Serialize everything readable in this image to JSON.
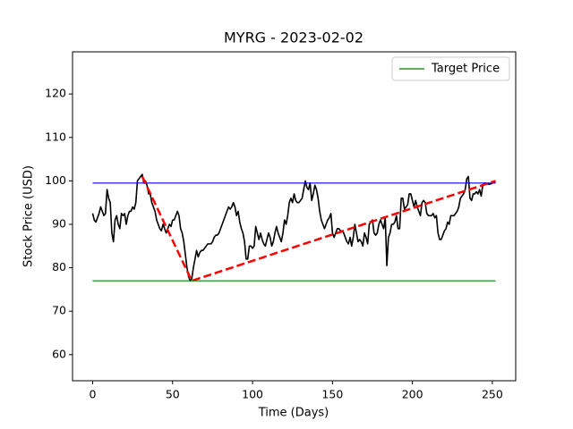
{
  "chart_data": {
    "type": "line",
    "title": "MYRG - 2023-02-02",
    "xlabel": "Time (Days)",
    "ylabel": "Stock Price (USD)",
    "xlim": [
      -12.6,
      264.6
    ],
    "ylim": [
      54,
      129.7
    ],
    "xticks": [
      0,
      50,
      100,
      150,
      200,
      250
    ],
    "yticks": [
      60,
      70,
      80,
      90,
      100,
      110,
      120
    ],
    "legend": "upper right",
    "series": [
      {
        "color": "black",
        "linestyle": "solid",
        "x": [
          0,
          1,
          2,
          3,
          4,
          5,
          6,
          7,
          8,
          9,
          10,
          11,
          12,
          13,
          14,
          15,
          16,
          17,
          18,
          19,
          20,
          21,
          22,
          23,
          24,
          25,
          26,
          27,
          28,
          29,
          30,
          31,
          32,
          33,
          34,
          35,
          36,
          37,
          38,
          39,
          40,
          41,
          42,
          43,
          44,
          45,
          46,
          47,
          48,
          49,
          50,
          51,
          52,
          53,
          54,
          55,
          56,
          57,
          58,
          59,
          60,
          61,
          62,
          63,
          64,
          65,
          66,
          67,
          68,
          69,
          70,
          71,
          72,
          73,
          74,
          75,
          76,
          77,
          78,
          79,
          80,
          81,
          82,
          83,
          84,
          85,
          86,
          87,
          88,
          89,
          90,
          91,
          92,
          93,
          94,
          95,
          96,
          97,
          98,
          99,
          100,
          101,
          102,
          103,
          104,
          105,
          106,
          107,
          108,
          109,
          110,
          111,
          112,
          113,
          114,
          115,
          116,
          117,
          118,
          119,
          120,
          121,
          122,
          123,
          124,
          125,
          126,
          127,
          128,
          129,
          130,
          131,
          132,
          133,
          134,
          135,
          136,
          137,
          138,
          139,
          140,
          141,
          142,
          143,
          144,
          145,
          146,
          147,
          148,
          149,
          150,
          151,
          152,
          153,
          154,
          155,
          156,
          157,
          158,
          159,
          160,
          161,
          162,
          163,
          164,
          165,
          166,
          167,
          168,
          169,
          170,
          171,
          172,
          173,
          174,
          175,
          176,
          177,
          178,
          179,
          180,
          181,
          182,
          183,
          184,
          185,
          186,
          187,
          188,
          189,
          190,
          191,
          192,
          193,
          194,
          195,
          196,
          197,
          198,
          199,
          200,
          201,
          202,
          203,
          204,
          205,
          206,
          207,
          208,
          209,
          210,
          211,
          212,
          213,
          214,
          215,
          216,
          217,
          218,
          219,
          220,
          221,
          222,
          223,
          224,
          225,
          226,
          227,
          228,
          229,
          230,
          231,
          232,
          233,
          234,
          235,
          236,
          237,
          238,
          239,
          240,
          241,
          242,
          243,
          244,
          245,
          246,
          247,
          248,
          249,
          250,
          251,
          252
        ],
        "values": [
          92.5,
          91,
          90.5,
          91.5,
          92.5,
          94,
          93,
          92,
          92.5,
          98,
          96,
          95,
          88,
          86,
          91,
          92,
          90,
          89,
          92.5,
          92,
          92.5,
          90,
          92,
          93,
          93,
          94,
          93.5,
          95,
          100,
          100.5,
          101,
          101.5,
          99.5,
          100,
          99,
          97,
          97,
          95,
          94,
          93,
          91,
          90,
          89,
          88.5,
          90,
          89,
          88,
          89,
          90,
          89.5,
          91,
          91,
          92,
          93,
          92,
          89,
          88,
          86,
          83,
          80,
          78,
          77,
          77.5,
          80,
          82,
          84,
          82.5,
          83.5,
          84,
          84,
          84.5,
          85,
          85.5,
          85.5,
          85.5,
          86,
          87,
          87.5,
          87.5,
          88,
          89,
          90,
          91,
          92,
          93,
          94,
          93.5,
          94,
          95,
          94,
          92,
          93,
          90.5,
          89,
          88,
          86,
          82,
          82,
          85,
          85,
          84.5,
          85,
          89.5,
          88,
          86.5,
          88,
          86.5,
          85.5,
          85,
          86.5,
          88,
          87,
          85,
          86,
          88,
          89.5,
          88,
          87,
          86,
          88,
          91,
          90,
          92,
          95,
          96,
          95,
          97,
          95.5,
          95,
          95,
          95.5,
          96,
          98,
          100,
          98.5,
          98,
          99.5,
          95.5,
          97,
          99,
          98,
          96,
          93,
          91,
          90,
          89,
          90,
          91,
          91.5,
          92.5,
          88,
          87,
          88,
          89,
          89,
          88.5,
          88.5,
          88,
          87,
          86,
          85.5,
          87,
          85,
          87,
          90,
          88,
          86,
          86.5,
          86,
          85,
          88,
          87,
          85.5,
          90,
          90.5,
          91,
          88,
          87.5,
          88,
          90,
          91,
          90,
          89,
          91.5,
          80.5,
          87,
          88,
          90,
          90,
          90.5,
          92,
          89,
          89,
          96,
          96,
          93.5,
          94,
          94.5,
          97,
          97,
          95.5,
          94,
          95.5,
          94,
          93,
          92,
          95,
          95.5,
          95,
          92.5,
          92,
          92,
          92,
          92.5,
          91.5,
          92,
          88,
          86.5,
          86.5,
          87.5,
          88.5,
          89,
          90.5,
          90,
          92,
          92,
          92,
          92.5,
          93,
          94,
          96,
          96.5,
          97,
          98,
          100.5,
          101,
          96,
          95.5,
          97,
          97,
          97.5,
          97,
          98,
          96.5,
          99,
          99.5,
          99.5,
          99.3,
          99.2,
          99.3,
          99.5,
          99.6,
          99.8
        ]
      },
      {
        "color": "blue",
        "linestyle": "solid",
        "x": [
          0,
          252
        ],
        "values": [
          99.5,
          99.5
        ]
      },
      {
        "color": "red",
        "linestyle": "dashed",
        "x": [
          31,
          62,
          252
        ],
        "values": [
          101,
          77,
          100
        ]
      },
      {
        "name": "Target Price",
        "color": "green",
        "linestyle": "solid",
        "x": [
          0,
          252
        ],
        "values": [
          77,
          77
        ]
      }
    ]
  }
}
